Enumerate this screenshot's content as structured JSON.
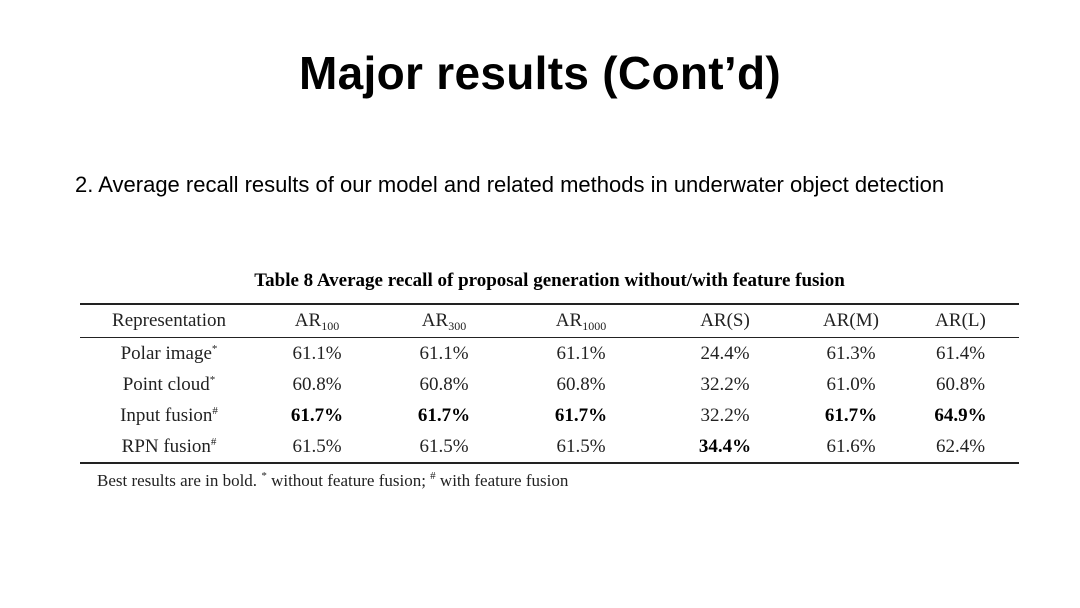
{
  "slide": {
    "title": "Major results (Cont’d)",
    "body_text": "2. Average  recall results of our model and related methods in underwater object detection"
  },
  "table": {
    "caption": "Table 8  Average recall of proposal generation without/with feature fusion",
    "headers": {
      "representation": "Representation",
      "ar100_base": "AR",
      "ar100_sub": "100",
      "ar300_base": "AR",
      "ar300_sub": "300",
      "ar1000_base": "AR",
      "ar1000_sub": "1000",
      "ars": "AR(S)",
      "arm": "AR(M)",
      "arl": "AR(L)"
    },
    "rows": [
      {
        "label": "Polar image",
        "mark": "*",
        "ar100": "61.1%",
        "ar300": "61.1%",
        "ar1000": "61.1%",
        "ars": "24.4%",
        "arm": "61.3%",
        "arl": "61.4%"
      },
      {
        "label": "Point cloud",
        "mark": "*",
        "ar100": "60.8%",
        "ar300": "60.8%",
        "ar1000": "60.8%",
        "ars": "32.2%",
        "arm": "61.0%",
        "arl": "60.8%"
      },
      {
        "label": "Input fusion",
        "mark": "#",
        "ar100": "61.7%",
        "ar300": "61.7%",
        "ar1000": "61.7%",
        "ars": "32.2%",
        "arm": "61.7%",
        "arl": "64.9%"
      },
      {
        "label": "RPN fusion",
        "mark": "#",
        "ar100": "61.5%",
        "ar300": "61.5%",
        "ar1000": "61.5%",
        "ars": "34.4%",
        "arm": "61.6%",
        "arl": "62.4%"
      }
    ],
    "footnote": {
      "part1": "Best results are in bold. ",
      "mark1": "*",
      "part2": " without feature fusion; ",
      "mark2": "#",
      "part3": " with feature fusion"
    }
  }
}
